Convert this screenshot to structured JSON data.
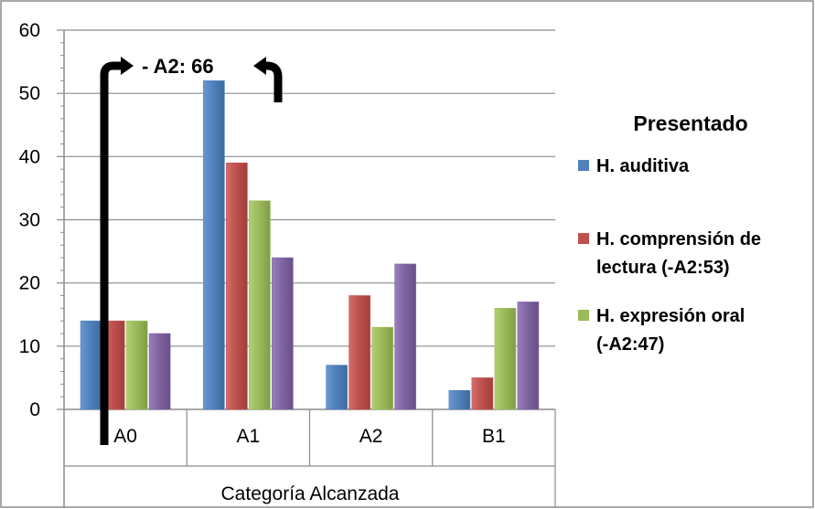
{
  "chart_data": {
    "type": "bar",
    "categories": [
      "A0",
      "A1",
      "A2",
      "B1"
    ],
    "xlabel": "Categoría Alcanzada",
    "ylabel": "",
    "ylim": [
      0,
      60
    ],
    "yticks": [
      0,
      10,
      20,
      30,
      40,
      50,
      60
    ],
    "grid": true,
    "legend_title": "Presentado",
    "legend_position": "right",
    "annotation": "- A2: 66",
    "series": [
      {
        "name": "H. auditiva",
        "legend_lines": [
          "H. auditiva"
        ],
        "color": "#4F81BD",
        "values": [
          14,
          52,
          7,
          3
        ]
      },
      {
        "name": "H. comprensión de lectura (-A2:53)",
        "legend_lines": [
          "H. comprensión de",
          "lectura (-A2:53)"
        ],
        "color": "#C0504D",
        "values": [
          14,
          39,
          18,
          5
        ]
      },
      {
        "name": "H. expresión oral (-A2:47)",
        "legend_lines": [
          "H. expresión oral",
          "(-A2:47)"
        ],
        "color": "#9BBB59",
        "values": [
          14,
          33,
          13,
          16
        ]
      },
      {
        "name": "",
        "legend_lines": [],
        "color": "#8064A2",
        "values": [
          12,
          24,
          23,
          17
        ]
      }
    ]
  }
}
